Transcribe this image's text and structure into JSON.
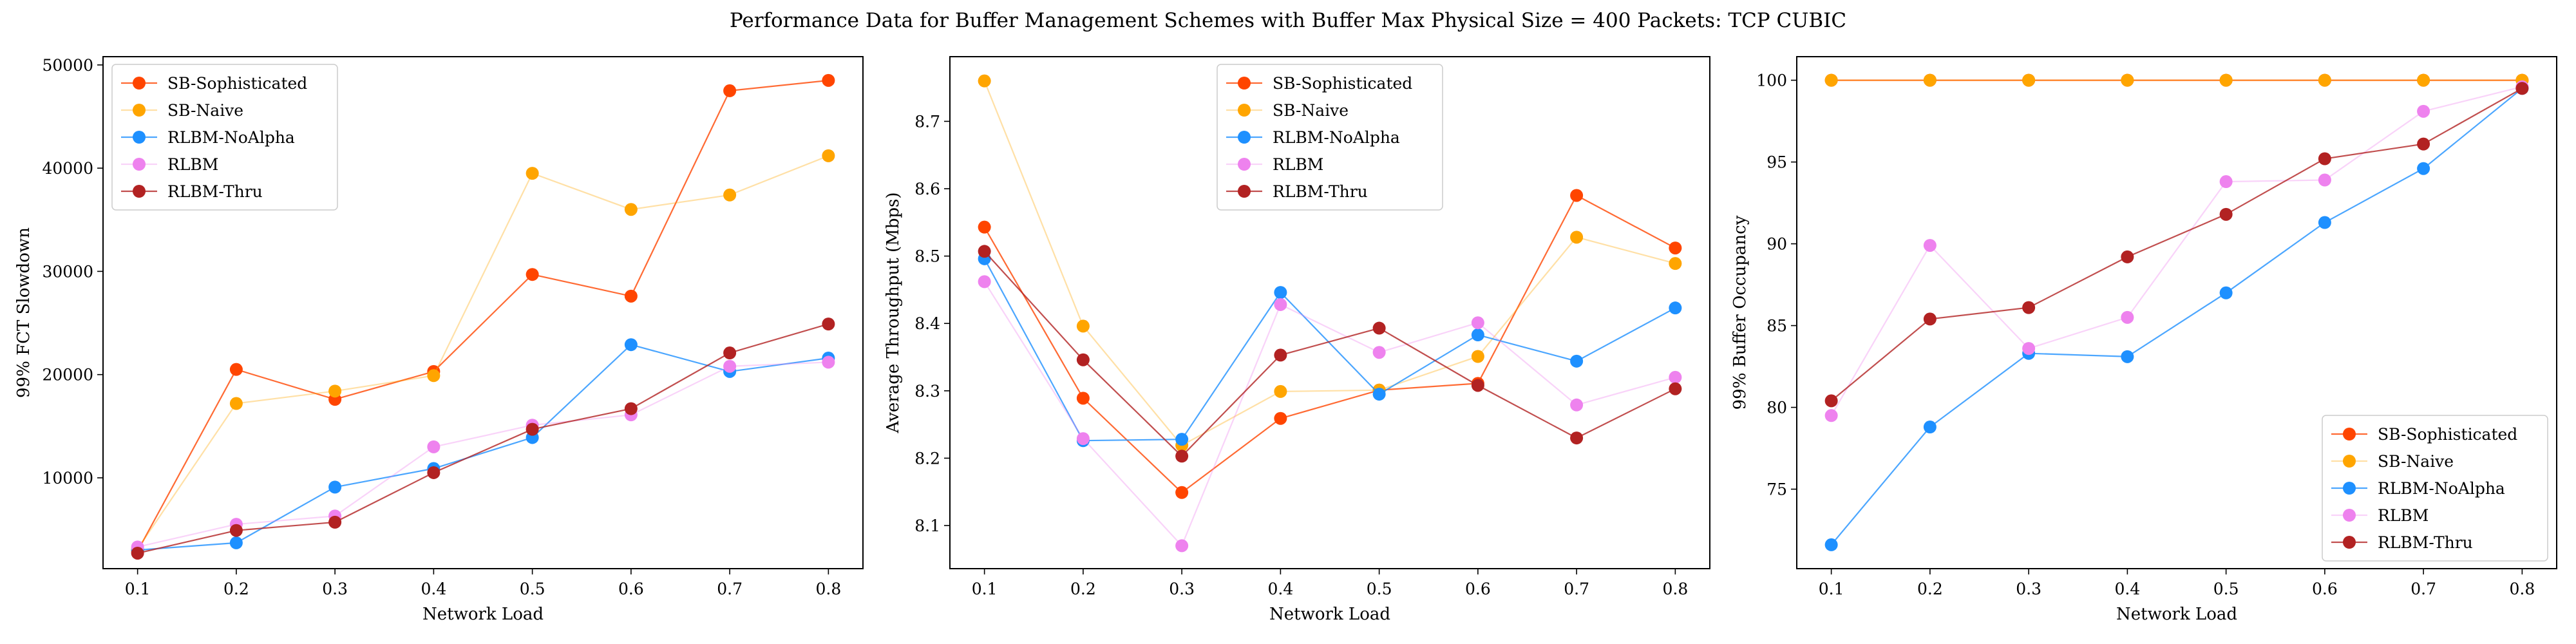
{
  "suptitle": "Performance Data for Buffer Management Schemes with Buffer Max Physical Size = 400 Packets: TCP CUBIC",
  "chart_data": [
    {
      "type": "line",
      "xlabel": "Network Load",
      "ylabel": "99% FCT Slowdown",
      "x": [
        0.1,
        0.2,
        0.3,
        0.4,
        0.5,
        0.6,
        0.7,
        0.8
      ],
      "xticks": [
        "0.1",
        "0.2",
        "0.3",
        "0.4",
        "0.5",
        "0.6",
        "0.7",
        "0.8"
      ],
      "xlim": [
        0.065,
        0.835
      ],
      "ylim": [
        1200,
        50800
      ],
      "yticks": [
        10000,
        20000,
        30000,
        40000,
        50000
      ],
      "ytick_labels": [
        "10000",
        "20000",
        "30000",
        "40000",
        "50000"
      ],
      "legend": "upper-left",
      "series": [
        {
          "name": "SB-Sophisticated",
          "color": "#ff4500",
          "line_opacity": 0.8,
          "marker_opacity": 1.0,
          "values": [
            2900,
            20500,
            17600,
            20300,
            29700,
            27600,
            47500,
            48500
          ]
        },
        {
          "name": "SB-Naive",
          "color": "#ffa500",
          "line_opacity": 0.35,
          "marker_opacity": 1.0,
          "values": [
            3100,
            17200,
            18400,
            19900,
            39500,
            36000,
            37400,
            41200
          ]
        },
        {
          "name": "RLBM-NoAlpha",
          "color": "#1e90ff",
          "line_opacity": 0.8,
          "marker_opacity": 1.0,
          "values": [
            3000,
            3700,
            9100,
            10900,
            13900,
            22900,
            20300,
            21600
          ]
        },
        {
          "name": "RLBM",
          "color": "#ee82ee",
          "line_opacity": 0.35,
          "marker_opacity": 1.0,
          "values": [
            3300,
            5500,
            6300,
            13000,
            15100,
            16100,
            20800,
            21200
          ]
        },
        {
          "name": "RLBM-Thru",
          "color": "#b22222",
          "line_opacity": 0.8,
          "marker_opacity": 1.0,
          "values": [
            2700,
            4900,
            5700,
            10500,
            14700,
            16700,
            22100,
            24900
          ]
        }
      ]
    },
    {
      "type": "line",
      "xlabel": "Network Load",
      "ylabel": "Average Throughput (Mbps)",
      "x": [
        0.1,
        0.2,
        0.3,
        0.4,
        0.5,
        0.6,
        0.7,
        0.8
      ],
      "xticks": [
        "0.1",
        "0.2",
        "0.3",
        "0.4",
        "0.5",
        "0.6",
        "0.7",
        "0.8"
      ],
      "xlim": [
        0.065,
        0.835
      ],
      "ylim": [
        8.036,
        8.796
      ],
      "yticks": [
        8.1,
        8.2,
        8.3,
        8.4,
        8.5,
        8.6,
        8.7
      ],
      "ytick_labels": [
        "8.1",
        "8.2",
        "8.3",
        "8.4",
        "8.5",
        "8.6",
        "8.7"
      ],
      "legend": "upper-center",
      "series": [
        {
          "name": "SB-Sophisticated",
          "color": "#ff4500",
          "line_opacity": 0.8,
          "marker_opacity": 1.0,
          "values": [
            8.543,
            8.289,
            8.149,
            8.259,
            8.301,
            8.311,
            8.59,
            8.512
          ]
        },
        {
          "name": "SB-Naive",
          "color": "#ffa500",
          "line_opacity": 0.35,
          "marker_opacity": 1.0,
          "values": [
            8.76,
            8.396,
            8.219,
            8.299,
            8.301,
            8.351,
            8.528,
            8.489
          ]
        },
        {
          "name": "RLBM-NoAlpha",
          "color": "#1e90ff",
          "line_opacity": 0.8,
          "marker_opacity": 1.0,
          "values": [
            8.496,
            8.226,
            8.228,
            8.446,
            8.295,
            8.383,
            8.344,
            8.423
          ]
        },
        {
          "name": "RLBM",
          "color": "#ee82ee",
          "line_opacity": 0.35,
          "marker_opacity": 1.0,
          "values": [
            8.462,
            8.229,
            8.07,
            8.428,
            8.357,
            8.401,
            8.279,
            8.32
          ]
        },
        {
          "name": "RLBM-Thru",
          "color": "#b22222",
          "line_opacity": 0.8,
          "marker_opacity": 1.0,
          "values": [
            8.507,
            8.346,
            8.203,
            8.353,
            8.393,
            8.308,
            8.23,
            8.303
          ]
        }
      ]
    },
    {
      "type": "line",
      "xlabel": "Network Load",
      "ylabel": "99% Buffer Occupancy",
      "x": [
        0.1,
        0.2,
        0.3,
        0.4,
        0.5,
        0.6,
        0.7,
        0.8
      ],
      "xticks": [
        "0.1",
        "0.2",
        "0.3",
        "0.4",
        "0.5",
        "0.6",
        "0.7",
        "0.8"
      ],
      "xlim": [
        0.065,
        0.835
      ],
      "ylim": [
        70.14,
        101.44
      ],
      "yticks": [
        75,
        80,
        85,
        90,
        95,
        100
      ],
      "ytick_labels": [
        "75",
        "80",
        "85",
        "90",
        "95",
        "100"
      ],
      "legend": "lower-right",
      "series": [
        {
          "name": "SB-Sophisticated",
          "color": "#ff4500",
          "line_opacity": 0.8,
          "marker_opacity": 1.0,
          "values": [
            100,
            100,
            100,
            100,
            100,
            100,
            100,
            100
          ]
        },
        {
          "name": "SB-Naive",
          "color": "#ffa500",
          "line_opacity": 0.35,
          "marker_opacity": 1.0,
          "values": [
            100,
            100,
            100,
            100,
            100,
            100,
            100,
            100
          ]
        },
        {
          "name": "RLBM-NoAlpha",
          "color": "#1e90ff",
          "line_opacity": 0.8,
          "marker_opacity": 1.0,
          "values": [
            71.6,
            78.8,
            83.3,
            83.1,
            87.0,
            91.3,
            94.6,
            99.5
          ]
        },
        {
          "name": "RLBM",
          "color": "#ee82ee",
          "line_opacity": 0.35,
          "marker_opacity": 1.0,
          "values": [
            79.5,
            89.9,
            83.6,
            85.5,
            93.8,
            93.9,
            98.1,
            99.6
          ]
        },
        {
          "name": "RLBM-Thru",
          "color": "#b22222",
          "line_opacity": 0.8,
          "marker_opacity": 1.0,
          "values": [
            80.4,
            85.4,
            86.1,
            89.2,
            91.8,
            95.2,
            96.1,
            99.5
          ]
        }
      ]
    }
  ]
}
